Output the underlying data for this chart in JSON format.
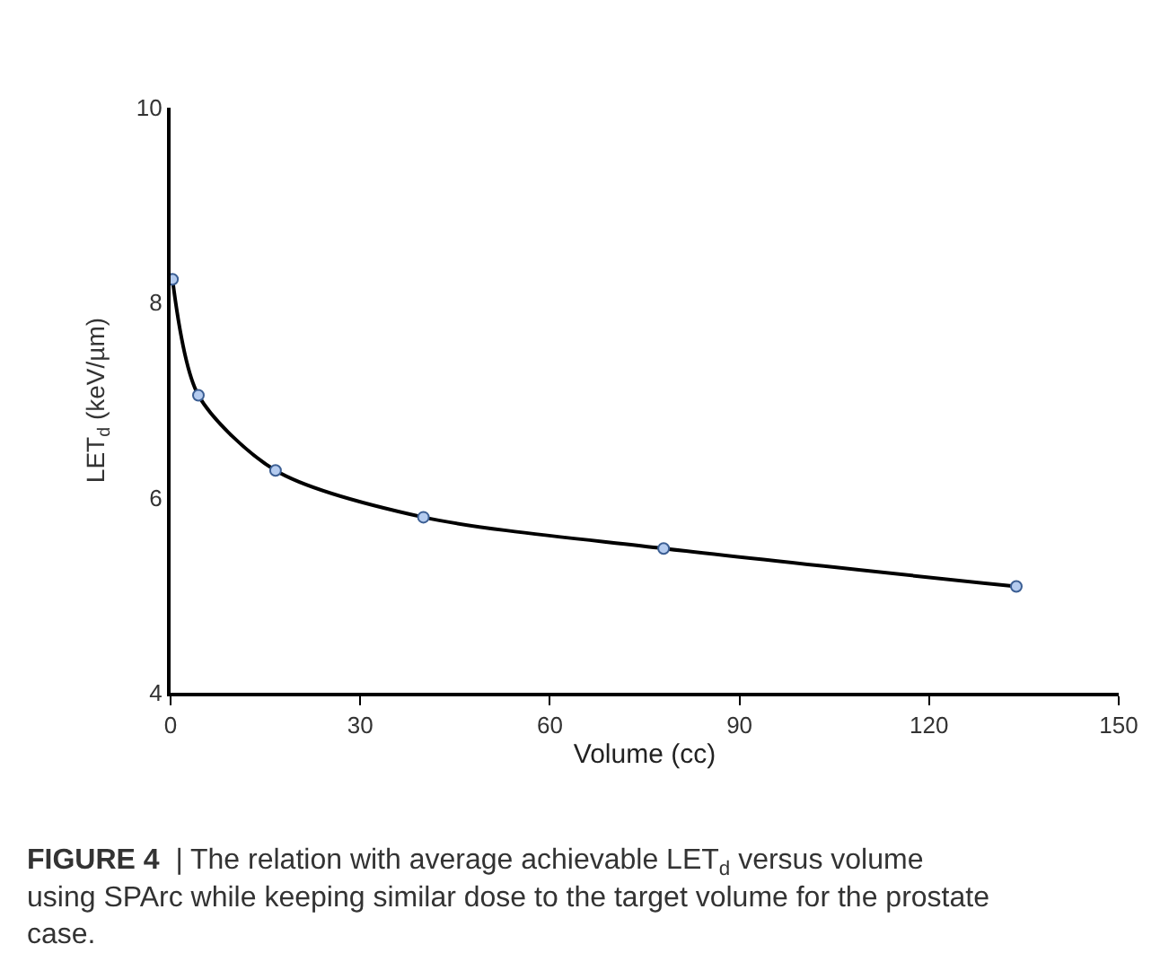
{
  "chart_data": {
    "type": "line",
    "xlabel": "Volume (cc)",
    "ylabel": "LET$_{d}$ (keV/µm)",
    "x": [
      0.3,
      4.4,
      16.6,
      40,
      78,
      133.8
    ],
    "series": [
      {
        "color": "#000000",
        "values": [
          8.24,
          7.05,
          6.28,
          5.8,
          5.48,
          5.09
        ]
      }
    ],
    "xlim": [
      0,
      150
    ],
    "xticks": [
      0,
      30,
      60,
      90,
      120,
      150
    ],
    "ylim": [
      4,
      10
    ],
    "yticks": [
      4,
      6,
      8,
      10
    ],
    "marker": "circle",
    "line_style": "solid",
    "annotations": [
      "FIGURE 4 | The relation with average achievable LET$_{d}$ versus volume using SPArc while keeping similar dose to the target volume for the prostate case."
    ]
  }
}
